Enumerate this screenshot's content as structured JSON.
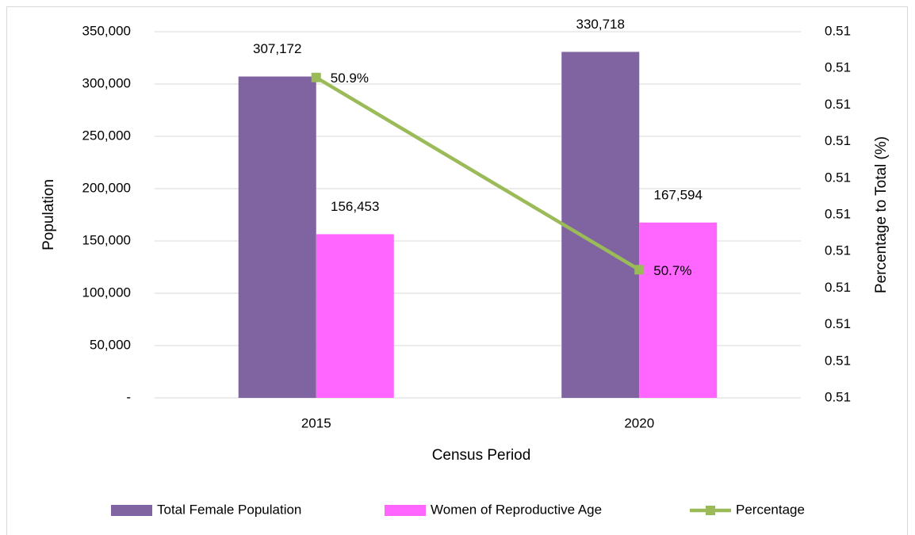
{
  "chart_data": {
    "type": "bar",
    "categories": [
      "2015",
      "2020"
    ],
    "series": [
      {
        "name": "Total Female Population",
        "color": "#8064a2",
        "values": [
          307172,
          330718
        ],
        "value_labels": [
          "307,172",
          "330,718"
        ]
      },
      {
        "name": "Women of Reproductive Age",
        "color": "#ff66ff",
        "values": [
          156453,
          167594
        ],
        "value_labels": [
          "156,453",
          "167,594"
        ]
      },
      {
        "name": "Percentage",
        "type": "line",
        "axis": "y2",
        "color": "#9bbb59",
        "values": [
          0.509,
          0.5069
        ],
        "value_labels": [
          "50.9%",
          "50.7%"
        ]
      }
    ],
    "x_label": "Census Period",
    "y_label": "Population",
    "y2_label": "Percentage to Total (%)",
    "ylim": [
      0,
      350000
    ],
    "yticks": [
      {
        "value": 0,
        "label": "-"
      },
      {
        "value": 50000,
        "label": "50,000"
      },
      {
        "value": 100000,
        "label": "100,000"
      },
      {
        "value": 150000,
        "label": "150,000"
      },
      {
        "value": 200000,
        "label": "200,000"
      },
      {
        "value": 250000,
        "label": "250,000"
      },
      {
        "value": 300000,
        "label": "300,000"
      },
      {
        "value": 350000,
        "label": "350,000"
      }
    ],
    "y2lim": [
      0.5055,
      0.5095
    ],
    "y2ticks": [
      {
        "value": 0.5055,
        "label": "0.51"
      },
      {
        "value": 0.5059,
        "label": "0.51"
      },
      {
        "value": 0.5063,
        "label": "0.51"
      },
      {
        "value": 0.5067,
        "label": "0.51"
      },
      {
        "value": 0.5071,
        "label": "0.51"
      },
      {
        "value": 0.5075,
        "label": "0.51"
      },
      {
        "value": 0.5079,
        "label": "0.51"
      },
      {
        "value": 0.5083,
        "label": "0.51"
      },
      {
        "value": 0.5087,
        "label": "0.51"
      },
      {
        "value": 0.5091,
        "label": "0.51"
      },
      {
        "value": 0.5095,
        "label": "0.51"
      }
    ],
    "grid": true,
    "legend": "bottom"
  }
}
